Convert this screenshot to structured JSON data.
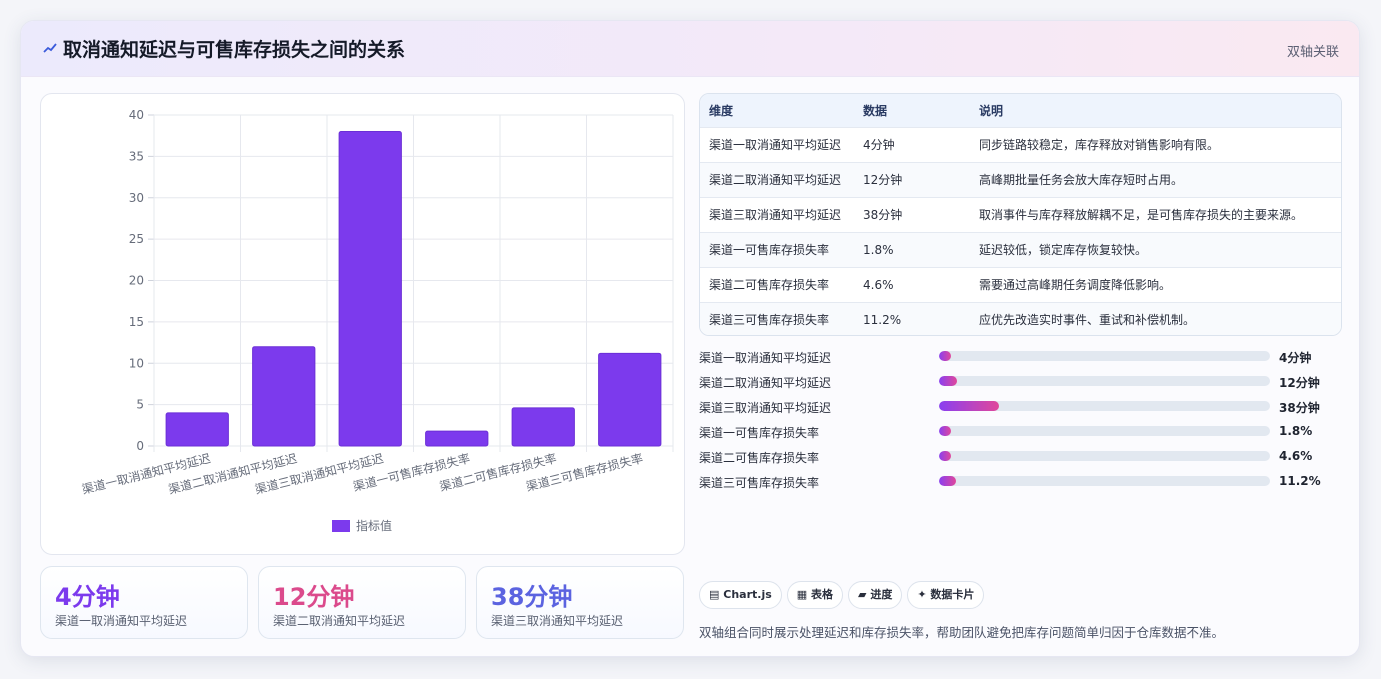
{
  "header": {
    "icon": "chart-line-icon",
    "title": "取消通知延迟与可售库存损失之间的关系",
    "right_label": "双轴关联"
  },
  "chart_data": {
    "type": "bar",
    "categories": [
      "渠道一取消通知平均延迟",
      "渠道二取消通知平均延迟",
      "渠道三取消通知平均延迟",
      "渠道一可售库存损失率",
      "渠道二可售库存损失率",
      "渠道三可售库存损失率"
    ],
    "series": [
      {
        "name": "指标值",
        "values": [
          4,
          12,
          38,
          1.8,
          4.6,
          11.2
        ]
      }
    ],
    "ylim": [
      0,
      40
    ],
    "yticks": [
      0,
      5,
      10,
      15,
      20,
      25,
      30,
      35,
      40
    ],
    "grid": true,
    "legend": "bottom",
    "bar_color": "#7c3aed"
  },
  "kpis": [
    {
      "value": "4分钟",
      "label": "渠道一取消通知平均延迟",
      "color": "#7c3aed"
    },
    {
      "value": "12分钟",
      "label": "渠道二取消通知平均延迟",
      "color": "#db4a8c"
    },
    {
      "value": "38分钟",
      "label": "渠道三取消通知平均延迟",
      "color": "#5b63e0"
    }
  ],
  "table": {
    "headers": [
      "维度",
      "数据",
      "说明"
    ],
    "rows": [
      [
        "渠道一取消通知平均延迟",
        "4分钟",
        "同步链路较稳定，库存释放对销售影响有限。"
      ],
      [
        "渠道二取消通知平均延迟",
        "12分钟",
        "高峰期批量任务会放大库存短时占用。"
      ],
      [
        "渠道三取消通知平均延迟",
        "38分钟",
        "取消事件与库存释放解耦不足，是可售库存损失的主要来源。"
      ],
      [
        "渠道一可售库存损失率",
        "1.8%",
        "延迟较低，锁定库存恢复较快。"
      ],
      [
        "渠道二可售库存损失率",
        "4.6%",
        "需要通过高峰期任务调度降低影响。"
      ],
      [
        "渠道三可售库存损失率",
        "11.2%",
        "应优先改造实时事件、重试和补偿机制。"
      ]
    ]
  },
  "progress": [
    {
      "label": "渠道一取消通知平均延迟",
      "value": "4分钟",
      "fraction": 0.035
    },
    {
      "label": "渠道二取消通知平均延迟",
      "value": "12分钟",
      "fraction": 0.055
    },
    {
      "label": "渠道三取消通知平均延迟",
      "value": "38分钟",
      "fraction": 0.18
    },
    {
      "label": "渠道一可售库存损失率",
      "value": "1.8%",
      "fraction": 0.035
    },
    {
      "label": "渠道二可售库存损失率",
      "value": "4.6%",
      "fraction": 0.035
    },
    {
      "label": "渠道三可售库存损失率",
      "value": "11.2%",
      "fraction": 0.05
    }
  ],
  "tags": [
    {
      "icon": "chart-icon",
      "glyph": "▤",
      "label": "Chart.js"
    },
    {
      "icon": "table-icon",
      "glyph": "▦",
      "label": "表格"
    },
    {
      "icon": "progress-icon",
      "glyph": "▰",
      "label": "进度"
    },
    {
      "icon": "sparkle-icon",
      "glyph": "✦",
      "label": "数据卡片"
    }
  ],
  "footer": "双轴组合同时展示处理延迟和库存损失率，帮助团队避免把库存问题简单归因于仓库数据不准。"
}
